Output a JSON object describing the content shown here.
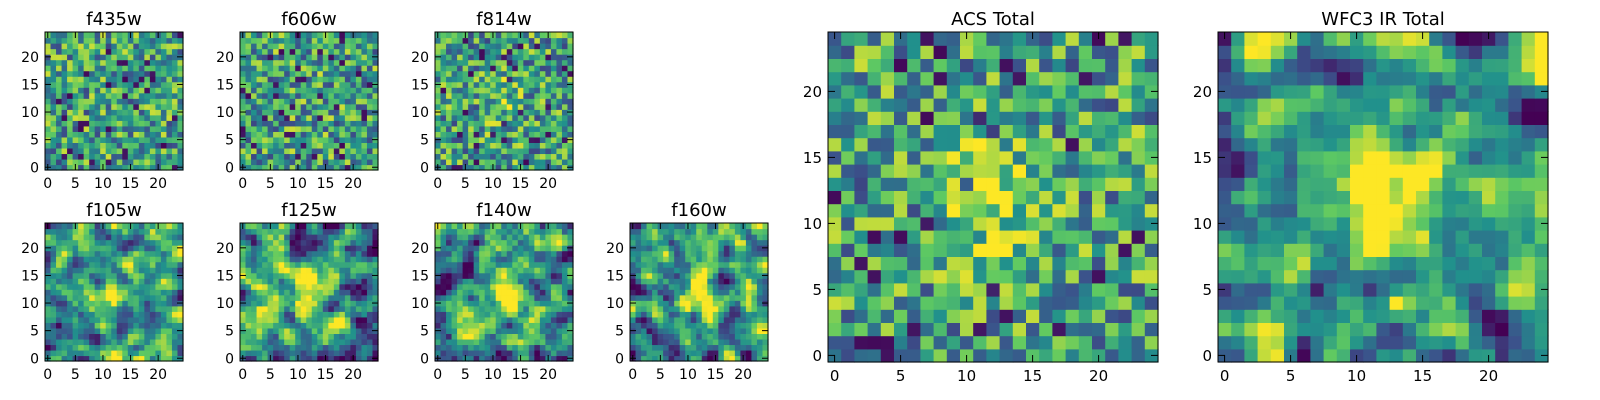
{
  "figure": {
    "colormap": [
      "#440154",
      "#3b528b",
      "#21918c",
      "#5ec962",
      "#fde725"
    ]
  },
  "chart_data": [
    {
      "type": "heatmap",
      "title": "f435w",
      "grid": false,
      "xlim": [
        0,
        25
      ],
      "ylim": [
        0,
        25
      ],
      "xticks": [
        "0",
        "5",
        "10",
        "15",
        "20"
      ],
      "yticks": [
        "0",
        "5",
        "10",
        "15",
        "20"
      ],
      "cells": 25,
      "pattern": "noise",
      "peak": 0.0,
      "seed": 11
    },
    {
      "type": "heatmap",
      "title": "f606w",
      "grid": false,
      "xlim": [
        0,
        25
      ],
      "ylim": [
        0,
        25
      ],
      "xticks": [
        "0",
        "5",
        "10",
        "15",
        "20"
      ],
      "yticks": [
        "0",
        "5",
        "10",
        "15",
        "20"
      ],
      "cells": 25,
      "pattern": "noise",
      "peak": 0.05,
      "seed": 23
    },
    {
      "type": "heatmap",
      "title": "f814w",
      "grid": false,
      "xlim": [
        0,
        25
      ],
      "ylim": [
        0,
        25
      ],
      "xticks": [
        "0",
        "5",
        "10",
        "15",
        "20"
      ],
      "yticks": [
        "0",
        "5",
        "10",
        "15",
        "20"
      ],
      "cells": 25,
      "pattern": "noise",
      "peak": 0.15,
      "seed": 37
    },
    {
      "type": "heatmap",
      "title": "f105w",
      "grid": false,
      "xlim": [
        0,
        25
      ],
      "ylim": [
        0,
        25
      ],
      "xticks": [
        "0",
        "5",
        "10",
        "15",
        "20"
      ],
      "yticks": [
        "0",
        "5",
        "10",
        "15",
        "20"
      ],
      "cells": 25,
      "pattern": "smooth",
      "peak": 0.35,
      "seed": 41
    },
    {
      "type": "heatmap",
      "title": "f125w",
      "grid": false,
      "xlim": [
        0,
        25
      ],
      "ylim": [
        0,
        25
      ],
      "xticks": [
        "0",
        "5",
        "10",
        "15",
        "20"
      ],
      "yticks": [
        "0",
        "5",
        "10",
        "15",
        "20"
      ],
      "cells": 25,
      "pattern": "smooth",
      "peak": 0.45,
      "seed": 53
    },
    {
      "type": "heatmap",
      "title": "f140w",
      "grid": false,
      "xlim": [
        0,
        25
      ],
      "ylim": [
        0,
        25
      ],
      "xticks": [
        "0",
        "5",
        "10",
        "15",
        "20"
      ],
      "yticks": [
        "0",
        "5",
        "10",
        "15",
        "20"
      ],
      "cells": 25,
      "pattern": "smooth",
      "peak": 0.5,
      "seed": 67
    },
    {
      "type": "heatmap",
      "title": "f160w",
      "grid": false,
      "xlim": [
        0,
        25
      ],
      "ylim": [
        0,
        25
      ],
      "xticks": [
        "0",
        "5",
        "10",
        "15",
        "20"
      ],
      "yticks": [
        "0",
        "5",
        "10",
        "15",
        "20"
      ],
      "cells": 25,
      "pattern": "smooth",
      "peak": 0.55,
      "seed": 79
    },
    {
      "type": "heatmap",
      "title": "ACS Total",
      "grid": false,
      "xlim": [
        0,
        25
      ],
      "ylim": [
        0,
        25
      ],
      "xticks": [
        "0",
        "5",
        "10",
        "15",
        "20"
      ],
      "yticks": [
        "0",
        "5",
        "10",
        "15",
        "20"
      ],
      "cells": 25,
      "pattern": "noise",
      "peak": 0.35,
      "seed": 97
    },
    {
      "type": "heatmap",
      "title": "WFC3 IR Total",
      "grid": false,
      "xlim": [
        0,
        25
      ],
      "ylim": [
        0,
        25
      ],
      "xticks": [
        "0",
        "5",
        "10",
        "15",
        "20"
      ],
      "yticks": [
        "0",
        "5",
        "10",
        "15",
        "20"
      ],
      "cells": 25,
      "pattern": "smooth",
      "peak": 0.6,
      "seed": 113
    }
  ]
}
